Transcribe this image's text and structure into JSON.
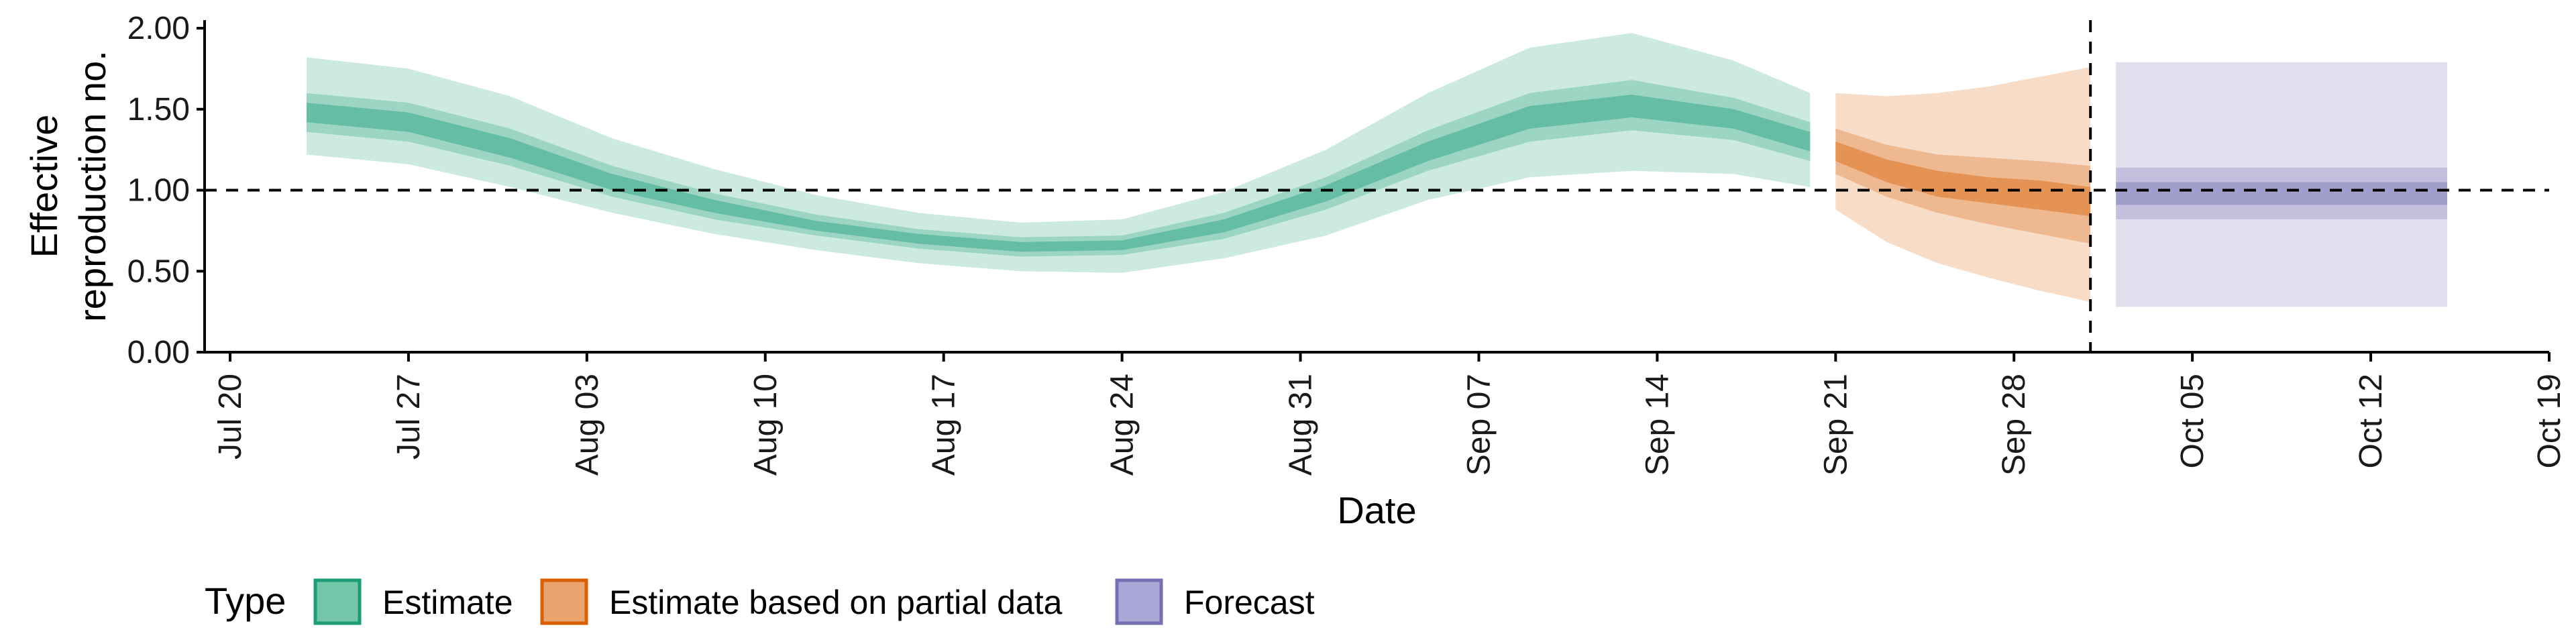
{
  "chart_data": {
    "type": "area",
    "xlabel": "Date",
    "ylabel": "Effective reproduction no.",
    "ylabel_lines": [
      "Effective",
      "reproduction no."
    ],
    "ylim": [
      0,
      2.05
    ],
    "xlim": [
      "2020-07-19",
      "2020-10-19"
    ],
    "y_ticks": [
      {
        "value": 0.0,
        "label": "0.00"
      },
      {
        "value": 0.5,
        "label": "0.50"
      },
      {
        "value": 1.0,
        "label": "1.00"
      },
      {
        "value": 1.5,
        "label": "1.50"
      },
      {
        "value": 2.0,
        "label": "2.00"
      }
    ],
    "x_ticks": [
      {
        "date": "2020-07-20",
        "label": "Jul 20"
      },
      {
        "date": "2020-07-27",
        "label": "Jul 27"
      },
      {
        "date": "2020-08-03",
        "label": "Aug 03"
      },
      {
        "date": "2020-08-10",
        "label": "Aug 10"
      },
      {
        "date": "2020-08-17",
        "label": "Aug 17"
      },
      {
        "date": "2020-08-24",
        "label": "Aug 24"
      },
      {
        "date": "2020-08-31",
        "label": "Aug 31"
      },
      {
        "date": "2020-09-07",
        "label": "Sep 07"
      },
      {
        "date": "2020-09-14",
        "label": "Sep 14"
      },
      {
        "date": "2020-09-21",
        "label": "Sep 21"
      },
      {
        "date": "2020-09-28",
        "label": "Sep 28"
      },
      {
        "date": "2020-10-05",
        "label": "Oct 05"
      },
      {
        "date": "2020-10-12",
        "label": "Oct 12"
      },
      {
        "date": "2020-10-19",
        "label": "Oct 19"
      }
    ],
    "hline": 1.0,
    "vline": "2020-10-01",
    "legend": {
      "title": "Type",
      "position": "bottom",
      "items": [
        {
          "label": "Estimate",
          "fill": "#74c6a9",
          "border": "#1b9e77"
        },
        {
          "label": "Estimate based on partial data",
          "fill": "#eba370",
          "border": "#d95f02"
        },
        {
          "label": "Forecast",
          "fill": "#aaa6d6",
          "border": "#7570b3"
        }
      ]
    },
    "series": [
      {
        "name": "Estimate",
        "color": "#1b9e77",
        "x": [
          "2020-07-23",
          "2020-07-27",
          "2020-07-31",
          "2020-08-04",
          "2020-08-08",
          "2020-08-12",
          "2020-08-16",
          "2020-08-20",
          "2020-08-24",
          "2020-08-28",
          "2020-09-01",
          "2020-09-05",
          "2020-09-09",
          "2020-09-13",
          "2020-09-17",
          "2020-09-20"
        ],
        "median": [
          1.48,
          1.42,
          1.26,
          1.05,
          0.9,
          0.78,
          0.7,
          0.65,
          0.66,
          0.78,
          0.98,
          1.24,
          1.45,
          1.52,
          1.44,
          1.3
        ],
        "lower_20": [
          1.42,
          1.36,
          1.2,
          1.0,
          0.86,
          0.75,
          0.67,
          0.62,
          0.63,
          0.74,
          0.93,
          1.18,
          1.38,
          1.45,
          1.38,
          1.24
        ],
        "upper_20": [
          1.54,
          1.48,
          1.32,
          1.1,
          0.94,
          0.81,
          0.73,
          0.68,
          0.69,
          0.82,
          1.03,
          1.3,
          1.52,
          1.59,
          1.5,
          1.36
        ],
        "lower_50": [
          1.36,
          1.3,
          1.15,
          0.96,
          0.82,
          0.72,
          0.64,
          0.59,
          0.6,
          0.7,
          0.88,
          1.12,
          1.3,
          1.37,
          1.31,
          1.18
        ],
        "upper_50": [
          1.6,
          1.54,
          1.38,
          1.15,
          0.98,
          0.85,
          0.76,
          0.71,
          0.72,
          0.86,
          1.08,
          1.37,
          1.6,
          1.68,
          1.57,
          1.42
        ],
        "lower_90": [
          1.22,
          1.16,
          1.02,
          0.86,
          0.73,
          0.63,
          0.55,
          0.5,
          0.49,
          0.58,
          0.72,
          0.94,
          1.08,
          1.12,
          1.1,
          1.02
        ],
        "upper_90": [
          1.82,
          1.75,
          1.58,
          1.32,
          1.13,
          0.97,
          0.86,
          0.8,
          0.82,
          0.99,
          1.25,
          1.6,
          1.88,
          1.97,
          1.8,
          1.6
        ]
      },
      {
        "name": "Estimate based on partial data",
        "color": "#d95f02",
        "x": [
          "2020-09-21",
          "2020-09-23",
          "2020-09-25",
          "2020-09-27",
          "2020-09-29",
          "2020-10-01"
        ],
        "median": [
          1.24,
          1.12,
          1.04,
          1.0,
          0.97,
          0.93
        ],
        "lower_20": [
          1.18,
          1.05,
          0.96,
          0.92,
          0.88,
          0.84
        ],
        "upper_20": [
          1.3,
          1.19,
          1.12,
          1.08,
          1.06,
          1.02
        ],
        "lower_50": [
          1.1,
          0.96,
          0.86,
          0.79,
          0.73,
          0.67
        ],
        "upper_50": [
          1.38,
          1.28,
          1.22,
          1.2,
          1.18,
          1.15
        ],
        "lower_90": [
          0.88,
          0.68,
          0.55,
          0.46,
          0.38,
          0.31
        ],
        "upper_90": [
          1.6,
          1.58,
          1.6,
          1.64,
          1.7,
          1.76
        ]
      },
      {
        "name": "Forecast",
        "color": "#7570b3",
        "x": [
          "2020-10-02",
          "2020-10-15"
        ],
        "median": [
          0.98,
          0.98
        ],
        "lower_20": [
          0.91,
          0.91
        ],
        "upper_20": [
          1.05,
          1.05
        ],
        "lower_50": [
          0.82,
          0.82
        ],
        "upper_50": [
          1.14,
          1.14
        ],
        "lower_90": [
          0.28,
          0.28
        ],
        "upper_90": [
          1.79,
          1.79
        ]
      }
    ]
  }
}
